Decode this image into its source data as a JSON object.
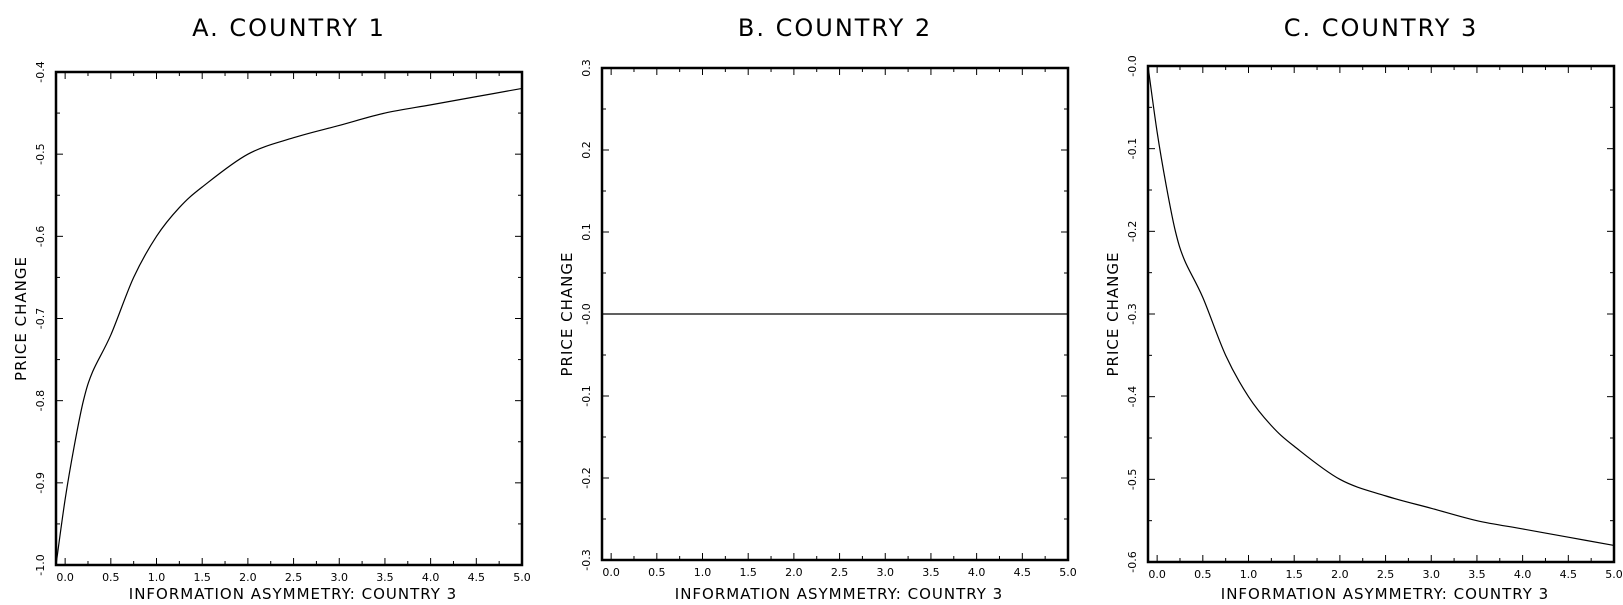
{
  "chart_data": [
    {
      "type": "line",
      "title": "A. COUNTRY 1",
      "xlabel": "INFORMATION ASYMMETRY: COUNTRY 3",
      "ylabel": "PRICE CHANGE",
      "xlim": [
        -0.1,
        5.0
      ],
      "ylim": [
        -1.0,
        -0.4
      ],
      "x_ticks": [
        "0.0",
        "0.5",
        "1.0",
        "1.5",
        "2.0",
        "2.5",
        "3.0",
        "3.5",
        "4.0",
        "4.5",
        "5.0"
      ],
      "y_ticks": [
        "-1.0",
        "-0.9",
        "-0.8",
        "-0.7",
        "-0.6",
        "-0.5",
        "-0.4"
      ],
      "grid": false,
      "series": [
        {
          "x": [
            -0.1,
            0.0,
            0.1,
            0.2,
            0.3,
            0.5,
            0.75,
            1.0,
            1.25,
            1.5,
            2.0,
            2.5,
            3.0,
            3.5,
            4.0,
            4.5,
            5.0
          ],
          "values": [
            -1.0,
            -0.92,
            -0.855,
            -0.8,
            -0.765,
            -0.72,
            -0.65,
            -0.6,
            -0.565,
            -0.54,
            -0.5,
            -0.48,
            -0.465,
            -0.45,
            -0.44,
            -0.43,
            -0.42
          ]
        }
      ]
    },
    {
      "type": "line",
      "title": "B. COUNTRY 2",
      "xlabel": "INFORMATION ASYMMETRY: COUNTRY 3",
      "ylabel": "PRICE CHANGE",
      "xlim": [
        -0.1,
        5.0
      ],
      "ylim": [
        -0.3,
        0.3
      ],
      "x_ticks": [
        "0.0",
        "0.5",
        "1.0",
        "1.5",
        "2.0",
        "2.5",
        "3.0",
        "3.5",
        "4.0",
        "4.5",
        "5.0"
      ],
      "y_ticks": [
        "-0.3",
        "-0.2",
        "-0.1",
        "-0.0",
        "0.1",
        "0.2",
        "0.3"
      ],
      "grid": false,
      "series": [
        {
          "x": [
            -0.1,
            5.0
          ],
          "values": [
            0.0,
            0.0
          ]
        }
      ]
    },
    {
      "type": "line",
      "title": "C. COUNTRY 3",
      "xlabel": "INFORMATION ASYMMETRY: COUNTRY 3",
      "ylabel": "PRICE CHANGE",
      "xlim": [
        -0.1,
        5.0
      ],
      "ylim": [
        -0.6,
        0.0
      ],
      "x_ticks": [
        "0.0",
        "0.5",
        "1.0",
        "1.5",
        "2.0",
        "2.5",
        "3.0",
        "3.5",
        "4.0",
        "4.5",
        "5.0"
      ],
      "y_ticks": [
        "-0.6",
        "-0.5",
        "-0.4",
        "-0.3",
        "-0.2",
        "-0.1",
        "-0.0"
      ],
      "grid": false,
      "series": [
        {
          "x": [
            -0.1,
            0.0,
            0.1,
            0.2,
            0.3,
            0.5,
            0.75,
            1.0,
            1.25,
            1.5,
            2.0,
            2.5,
            3.0,
            3.5,
            4.0,
            4.5,
            5.0
          ],
          "values": [
            0.0,
            -0.08,
            -0.145,
            -0.2,
            -0.235,
            -0.28,
            -0.35,
            -0.4,
            -0.435,
            -0.46,
            -0.5,
            -0.52,
            -0.535,
            -0.55,
            -0.56,
            -0.57,
            -0.58
          ]
        }
      ]
    }
  ]
}
